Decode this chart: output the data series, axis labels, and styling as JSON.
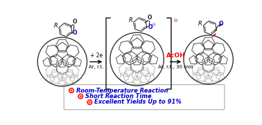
{
  "background_color": "#ffffff",
  "bullet_color": "#ff3333",
  "text_color": "#0000cc",
  "arrow_color": "#000000",
  "acoh_color": "#ff0000",
  "blue_color": "#0000cc",
  "purple_color": "#cc44cc",
  "red_bond_color": "#cc0000",
  "dark_gray": "#444444",
  "mid_gray": "#777777",
  "light_gray": "#aaaaaa",
  "bullet_points": [
    "Room-Temperature Reaction",
    "Short Reaction Time",
    "Excellent Yields Up to 91%"
  ],
  "arrow1_label_line1": "+ 2e",
  "arrow1_label_line2": "Ar, r.t.",
  "arrow2_label_line1": "AcOH",
  "arrow2_label_line2": "Ar, r.t., 30 min",
  "figsize": [
    3.78,
    1.81
  ],
  "dpi": 100
}
